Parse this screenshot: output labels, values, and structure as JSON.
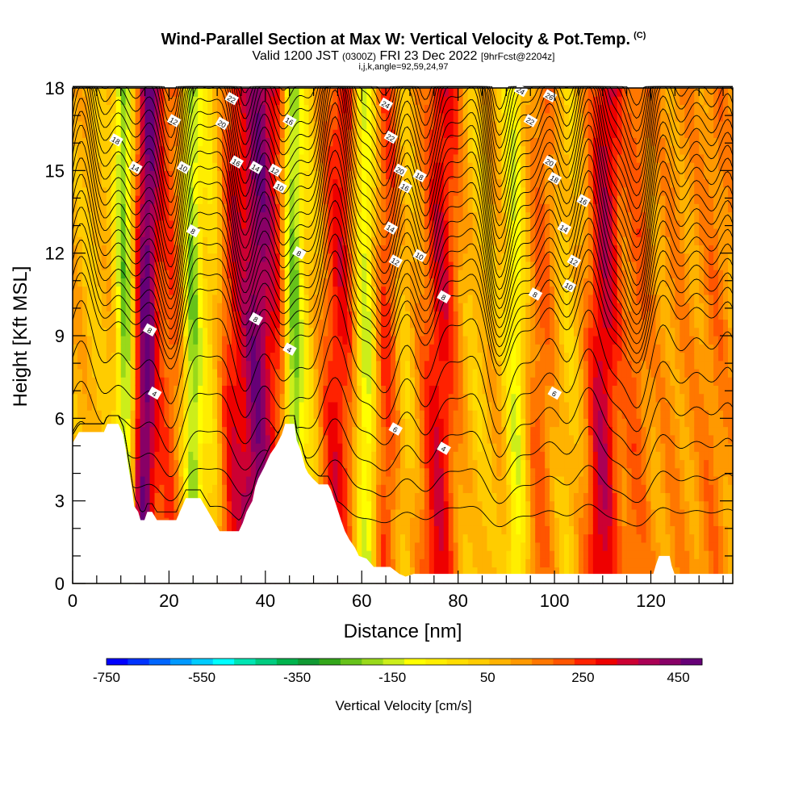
{
  "header": {
    "title_main": "Wind-Parallel Section at Max W: Vertical Velocity & Pot.Temp.",
    "title_unit": "(C)",
    "valid_a": "Valid 1200 JST",
    "valid_b": "(0300Z)",
    "valid_c": "FRI 23 Dec 2022",
    "valid_d": "[9hrFcst@2204z]",
    "subtitle": "i,j,k,angle=92,59,24,97"
  },
  "chart_data": {
    "type": "heatmap",
    "xlabel": "Distance [nm]",
    "ylabel": "Height [Kft MSL]",
    "xlim": [
      0,
      137
    ],
    "ylim": [
      0,
      18
    ],
    "x_ticks": [
      "0",
      "20",
      "40",
      "60",
      "80",
      "100",
      "120"
    ],
    "x_tick_values": [
      0,
      20,
      40,
      60,
      80,
      100,
      120
    ],
    "y_ticks": [
      "0",
      "3",
      "6",
      "9",
      "12",
      "15",
      "18"
    ],
    "y_tick_values": [
      0,
      3,
      6,
      9,
      12,
      15,
      18
    ],
    "colorbar": {
      "label": "Vertical Velocity [cm/s]",
      "tick_labels": [
        "-750",
        "-550",
        "-350",
        "-150",
        "50",
        "250",
        "450"
      ],
      "tick_values": [
        -750,
        -550,
        -350,
        -150,
        50,
        250,
        450
      ],
      "range": [
        -750,
        500
      ],
      "colors": [
        "#0000ff",
        "#0033ff",
        "#0066ff",
        "#0099ff",
        "#00ccff",
        "#00ffff",
        "#00e5b3",
        "#00cc80",
        "#00b34d",
        "#119933",
        "#33a61a",
        "#66c21a",
        "#99d91a",
        "#ccee1a",
        "#ffff00",
        "#ffee00",
        "#ffdd00",
        "#ffcc00",
        "#ffb300",
        "#ff9900",
        "#ff7700",
        "#ff5500",
        "#ff2200",
        "#ee0000",
        "#cc0033",
        "#aa0055",
        "#880066",
        "#660077"
      ]
    },
    "velocity_ridges": [
      {
        "x": 5,
        "w": -40,
        "sigma": 2.0
      },
      {
        "x": 11,
        "w": -320,
        "sigma": 1.3
      },
      {
        "x": 15,
        "w": 380,
        "sigma": 1.7
      },
      {
        "x": 20,
        "w": 120,
        "sigma": 2.0
      },
      {
        "x": 25,
        "w": -300,
        "sigma": 1.4
      },
      {
        "x": 29,
        "w": -100,
        "sigma": 1.6
      },
      {
        "x": 33,
        "w": 180,
        "sigma": 2.0
      },
      {
        "x": 38,
        "w": 330,
        "sigma": 2.2
      },
      {
        "x": 42,
        "w": 120,
        "sigma": 1.8
      },
      {
        "x": 46,
        "w": -320,
        "sigma": 1.3
      },
      {
        "x": 49,
        "w": -80,
        "sigma": 1.5
      },
      {
        "x": 55,
        "w": 200,
        "sigma": 2.4
      },
      {
        "x": 61,
        "w": -250,
        "sigma": 1.5
      },
      {
        "x": 65,
        "w": 150,
        "sigma": 2.0
      },
      {
        "x": 69,
        "w": -80,
        "sigma": 1.4
      },
      {
        "x": 76,
        "w": 220,
        "sigma": 2.5
      },
      {
        "x": 84,
        "w": -50,
        "sigma": 2.0
      },
      {
        "x": 92,
        "w": -200,
        "sigma": 1.5
      },
      {
        "x": 97,
        "w": 100,
        "sigma": 2.0
      },
      {
        "x": 103,
        "w": -60,
        "sigma": 1.8
      },
      {
        "x": 110,
        "w": 260,
        "sigma": 2.3
      },
      {
        "x": 117,
        "w": 100,
        "sigma": 2.0
      },
      {
        "x": 125,
        "w": 40,
        "sigma": 2.5
      },
      {
        "x": 133,
        "w": 70,
        "sigma": 2.5
      }
    ],
    "terrain": [
      [
        0,
        5.1
      ],
      [
        1.3,
        5.5
      ],
      [
        6.5,
        5.5
      ],
      [
        7.2,
        5.8
      ],
      [
        9.5,
        5.8
      ],
      [
        10.5,
        5.4
      ],
      [
        11,
        4.9
      ],
      [
        11.6,
        4.2
      ],
      [
        12.3,
        3.5
      ],
      [
        12.8,
        2.8
      ],
      [
        13.6,
        2.6
      ],
      [
        14.1,
        2.3
      ],
      [
        14.9,
        2.3
      ],
      [
        15.5,
        2.6
      ],
      [
        16.5,
        2.6
      ],
      [
        17.5,
        2.3
      ],
      [
        21.5,
        2.3
      ],
      [
        22.5,
        2.7
      ],
      [
        23.5,
        3.1
      ],
      [
        26.5,
        3.1
      ],
      [
        27.5,
        2.8
      ],
      [
        28.5,
        2.5
      ],
      [
        29.5,
        2.2
      ],
      [
        30.5,
        1.9
      ],
      [
        34.5,
        1.9
      ],
      [
        35.3,
        2.2
      ],
      [
        36.1,
        2.6
      ],
      [
        37.3,
        3
      ],
      [
        37.9,
        3.5
      ],
      [
        38.5,
        3.8
      ],
      [
        39.7,
        4.2
      ],
      [
        41,
        4.7
      ],
      [
        42.2,
        5
      ],
      [
        43.4,
        5.4
      ],
      [
        44.1,
        5.8
      ],
      [
        46,
        5.8
      ],
      [
        46.5,
        5.2
      ],
      [
        47.4,
        4.8
      ],
      [
        48.3,
        4.2
      ],
      [
        48.9,
        4
      ],
      [
        49.9,
        3.8
      ],
      [
        51.1,
        3.6
      ],
      [
        53,
        3.6
      ],
      [
        53.6,
        3.4
      ],
      [
        54.6,
        2.9
      ],
      [
        55.7,
        2.3
      ],
      [
        56.5,
        1.9
      ],
      [
        57.4,
        1.6
      ],
      [
        58.6,
        1.3
      ],
      [
        59.4,
        1.0
      ],
      [
        61.0,
        0.9
      ],
      [
        62.5,
        0.6
      ],
      [
        65.9,
        0.6
      ],
      [
        67.8,
        0.35
      ],
      [
        69.1,
        0.25
      ],
      [
        70.8,
        0.35
      ],
      [
        120.5,
        0.35
      ],
      [
        121,
        0.65
      ],
      [
        121.7,
        1.0
      ],
      [
        123.9,
        1.0
      ],
      [
        124.3,
        0.65
      ],
      [
        124.9,
        0.35
      ],
      [
        137,
        0.35
      ]
    ],
    "theta_contours": {
      "levels": [
        -1,
        0,
        1,
        2,
        3,
        4,
        5,
        6,
        7,
        8,
        9,
        10,
        11,
        12,
        13,
        14,
        15,
        16,
        17,
        18,
        19,
        20,
        21,
        22,
        23,
        24,
        25,
        26,
        27,
        28
      ],
      "labeled": [
        "4",
        "6",
        "8",
        "10",
        "12",
        "14",
        "16",
        "18",
        "20",
        "22",
        "24",
        "26"
      ],
      "label_positions": [
        {
          "t": "4",
          "x": 17,
          "y": 6.9
        },
        {
          "t": "4",
          "x": 45,
          "y": 8.5
        },
        {
          "t": "4",
          "x": 77,
          "y": 4.9
        },
        {
          "t": "6",
          "x": 67,
          "y": 5.6
        },
        {
          "t": "6",
          "x": 100,
          "y": 6.9
        },
        {
          "t": "8",
          "x": 16,
          "y": 9.2
        },
        {
          "t": "8",
          "x": 38,
          "y": 9.6
        },
        {
          "t": "8",
          "x": 25,
          "y": 12.8
        },
        {
          "t": "8",
          "x": 47,
          "y": 12.0
        },
        {
          "t": "8",
          "x": 77,
          "y": 10.4
        },
        {
          "t": "8",
          "x": 96,
          "y": 10.5
        },
        {
          "t": "10",
          "x": 23,
          "y": 15.1
        },
        {
          "t": "10",
          "x": 43,
          "y": 14.4
        },
        {
          "t": "10",
          "x": 72,
          "y": 11.9
        },
        {
          "t": "10",
          "x": 103,
          "y": 10.8
        },
        {
          "t": "12",
          "x": 21,
          "y": 16.8
        },
        {
          "t": "12",
          "x": 42,
          "y": 15.0
        },
        {
          "t": "12",
          "x": 67,
          "y": 11.7
        },
        {
          "t": "12",
          "x": 104,
          "y": 11.7
        },
        {
          "t": "14",
          "x": 13,
          "y": 15.1
        },
        {
          "t": "14",
          "x": 38,
          "y": 15.1
        },
        {
          "t": "14",
          "x": 66,
          "y": 12.9
        },
        {
          "t": "14",
          "x": 102,
          "y": 12.9
        },
        {
          "t": "16",
          "x": 34,
          "y": 15.3
        },
        {
          "t": "16",
          "x": 69,
          "y": 14.4
        },
        {
          "t": "16",
          "x": 106,
          "y": 13.9
        },
        {
          "t": "16",
          "x": 45,
          "y": 16.8
        },
        {
          "t": "18",
          "x": 9,
          "y": 16.1
        },
        {
          "t": "18",
          "x": 72,
          "y": 14.8
        },
        {
          "t": "18",
          "x": 100,
          "y": 14.7
        },
        {
          "t": "20",
          "x": 31,
          "y": 16.7
        },
        {
          "t": "20",
          "x": 68,
          "y": 15.0
        },
        {
          "t": "20",
          "x": 99,
          "y": 15.3
        },
        {
          "t": "22",
          "x": 33,
          "y": 17.6
        },
        {
          "t": "22",
          "x": 66,
          "y": 16.2
        },
        {
          "t": "22",
          "x": 95,
          "y": 16.8
        },
        {
          "t": "24",
          "x": 65,
          "y": 17.4
        },
        {
          "t": "24",
          "x": 93,
          "y": 17.9
        },
        {
          "t": "26",
          "x": 99,
          "y": 17.7
        }
      ]
    }
  }
}
